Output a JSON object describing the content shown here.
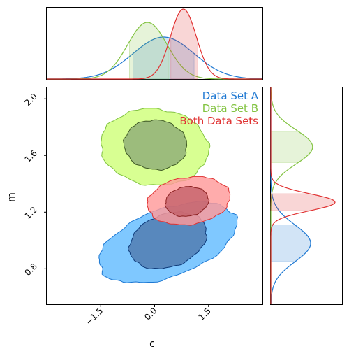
{
  "chart_data": {
    "type": "contour",
    "xlabel": "c",
    "ylabel": "m",
    "xlim": [
      -3.0,
      3.0
    ],
    "ylim": [
      0.55,
      2.08
    ],
    "x_ticks": [
      -1.5,
      0.0,
      1.5
    ],
    "x_tick_labels": [
      "−1.5",
      "0.0",
      "1.5"
    ],
    "y_ticks": [
      0.8,
      1.2,
      1.6,
      2.0
    ],
    "y_tick_labels": [
      "0.8",
      "1.2",
      "1.6",
      "2.0"
    ],
    "legend_position": "top-right",
    "series": [
      {
        "name": "Data Set A",
        "color": "#1e78d2",
        "fill_outer": "#7fc8ff",
        "fill_inner": "#5888bd",
        "center": [
          0.25,
          1.0
        ],
        "contour_68": {
          "x_range": [
            -0.7,
            1.45
          ],
          "y_range": [
            0.8,
            1.2
          ]
        },
        "contour_95": {
          "x_range": [
            -1.55,
            2.28
          ],
          "y_range": [
            0.7,
            1.27
          ]
        },
        "marginal_x": {
          "mean": 0.25,
          "sd": 0.85,
          "peak": 0.6,
          "band": [
            -0.6,
            1.1
          ]
        },
        "marginal_y": {
          "mean": 0.98,
          "sd": 0.13,
          "peak": 0.62,
          "band": [
            0.85,
            1.11
          ]
        }
      },
      {
        "name": "Data Set B",
        "color": "#82c341",
        "fill_outer": "#d8ff92",
        "fill_inner": "#9cbc7c",
        "center": [
          -0.2,
          1.68
        ],
        "contour_68": {
          "x_range": [
            -0.85,
            0.9
          ],
          "y_range": [
            1.5,
            1.85
          ]
        },
        "contour_95": {
          "x_range": [
            -1.5,
            1.5
          ],
          "y_range": [
            1.39,
            1.93
          ]
        },
        "marginal_x": {
          "mean": -0.2,
          "sd": 0.55,
          "peak": 0.81,
          "band": [
            -0.7,
            0.4
          ]
        },
        "marginal_y": {
          "mean": 1.66,
          "sd": 0.12,
          "peak": 0.65,
          "band": [
            1.55,
            1.77
          ]
        }
      },
      {
        "name": "Both Data Sets",
        "color": "#e03232",
        "fill_outer": "#ff9a9a",
        "fill_inner": "#c05c66",
        "center": [
          0.8,
          1.28
        ],
        "contour_68": {
          "x_range": [
            0.3,
            1.5
          ],
          "y_range": [
            1.17,
            1.38
          ]
        },
        "contour_95": {
          "x_range": [
            -0.2,
            2.1
          ],
          "y_range": [
            1.11,
            1.45
          ]
        },
        "marginal_x": {
          "mean": 0.8,
          "sd": 0.36,
          "peak": 1.0,
          "band": [
            0.45,
            1.2
          ]
        },
        "marginal_y": {
          "mean": 1.27,
          "sd": 0.06,
          "peak": 1.0,
          "band": [
            1.21,
            1.33
          ]
        }
      }
    ]
  }
}
